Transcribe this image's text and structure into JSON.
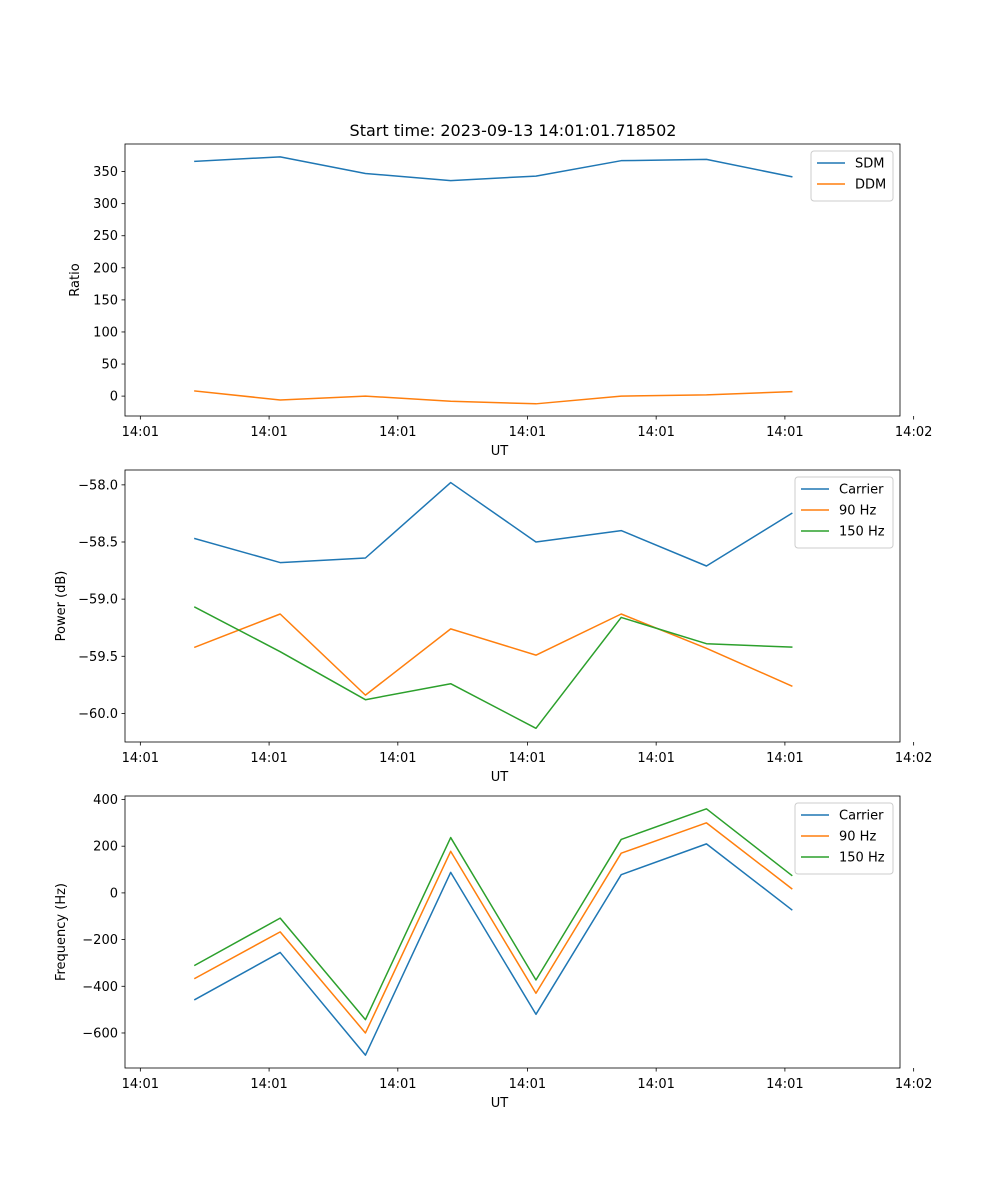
{
  "figure": {
    "title": "Start time: 2023-09-13 14:01:01.718502"
  },
  "chart_data": [
    {
      "type": "line",
      "title": "Start time: 2023-09-13 14:01:01.718502",
      "xlabel": "UT",
      "ylabel": "Ratio",
      "x": [
        1,
        2,
        3,
        4,
        5,
        6,
        7,
        8
      ],
      "xlim": [
        0.18,
        9.27
      ],
      "x_ticks": [
        0.36,
        1.87,
        3.38,
        4.9,
        6.41,
        7.92,
        9.43
      ],
      "x_tick_labels": [
        "14:01",
        "14:01",
        "14:01",
        "14:01",
        "14:01",
        "14:01",
        "14:02"
      ],
      "ylim": [
        -31,
        393
      ],
      "y_ticks": [
        0,
        50,
        100,
        150,
        200,
        250,
        300,
        350
      ],
      "y_tick_labels": [
        "0",
        "50",
        "100",
        "150",
        "200",
        "250",
        "300",
        "350"
      ],
      "legend_location": "top-right",
      "series": [
        {
          "name": "SDM",
          "color": "#1f77b4",
          "values": [
            366,
            373,
            347,
            336,
            343,
            367,
            369,
            342
          ]
        },
        {
          "name": "DDM",
          "color": "#ff7f0e",
          "values": [
            8,
            -6,
            0,
            -8,
            -12,
            0,
            2,
            7
          ]
        }
      ]
    },
    {
      "type": "line",
      "title": "",
      "xlabel": "UT",
      "ylabel": "Power (dB)",
      "x": [
        1,
        2,
        3,
        4,
        5,
        6,
        7,
        8
      ],
      "xlim": [
        0.18,
        9.27
      ],
      "x_ticks": [
        0.36,
        1.87,
        3.38,
        4.9,
        6.41,
        7.92,
        9.43
      ],
      "x_tick_labels": [
        "14:01",
        "14:01",
        "14:01",
        "14:01",
        "14:01",
        "14:01",
        "14:02"
      ],
      "ylim": [
        -60.25,
        -57.87
      ],
      "y_ticks": [
        -60.0,
        -59.5,
        -59.0,
        -58.5,
        -58.0
      ],
      "y_tick_labels": [
        "−60.0",
        "−59.5",
        "−59.0",
        "−58.5",
        "−58.0"
      ],
      "legend_location": "top-right",
      "series": [
        {
          "name": "Carrier",
          "color": "#1f77b4",
          "values": [
            -58.47,
            -58.68,
            -58.64,
            -57.98,
            -58.5,
            -58.4,
            -58.71,
            -58.25
          ]
        },
        {
          "name": "90 Hz",
          "color": "#ff7f0e",
          "values": [
            -59.42,
            -59.13,
            -59.84,
            -59.26,
            -59.49,
            -59.13,
            -59.43,
            -59.76
          ]
        },
        {
          "name": "150 Hz",
          "color": "#2ca02c",
          "values": [
            -59.07,
            -59.46,
            -59.88,
            -59.74,
            -60.13,
            -59.16,
            -59.39,
            -59.42
          ]
        }
      ]
    },
    {
      "type": "line",
      "title": "",
      "xlabel": "UT",
      "ylabel": "Frequency (Hz)",
      "x": [
        1,
        2,
        3,
        4,
        5,
        6,
        7,
        8
      ],
      "xlim": [
        0.18,
        9.27
      ],
      "x_ticks": [
        0.36,
        1.87,
        3.38,
        4.9,
        6.41,
        7.92,
        9.43
      ],
      "x_tick_labels": [
        "14:01",
        "14:01",
        "14:01",
        "14:01",
        "14:01",
        "14:01",
        "14:02"
      ],
      "ylim": [
        -750,
        415
      ],
      "y_ticks": [
        -600,
        -400,
        -200,
        0,
        200,
        400
      ],
      "y_tick_labels": [
        "−600",
        "−400",
        "−200",
        "0",
        "200",
        "400"
      ],
      "legend_location": "top-right",
      "series": [
        {
          "name": "Carrier",
          "color": "#1f77b4",
          "values": [
            -457,
            -255,
            -695,
            88,
            -520,
            78,
            210,
            -72
          ]
        },
        {
          "name": "90 Hz",
          "color": "#ff7f0e",
          "values": [
            -366,
            -167,
            -600,
            178,
            -430,
            170,
            300,
            18
          ]
        },
        {
          "name": "150 Hz",
          "color": "#2ca02c",
          "values": [
            -310,
            -108,
            -543,
            237,
            -373,
            229,
            360,
            75
          ]
        }
      ]
    }
  ]
}
